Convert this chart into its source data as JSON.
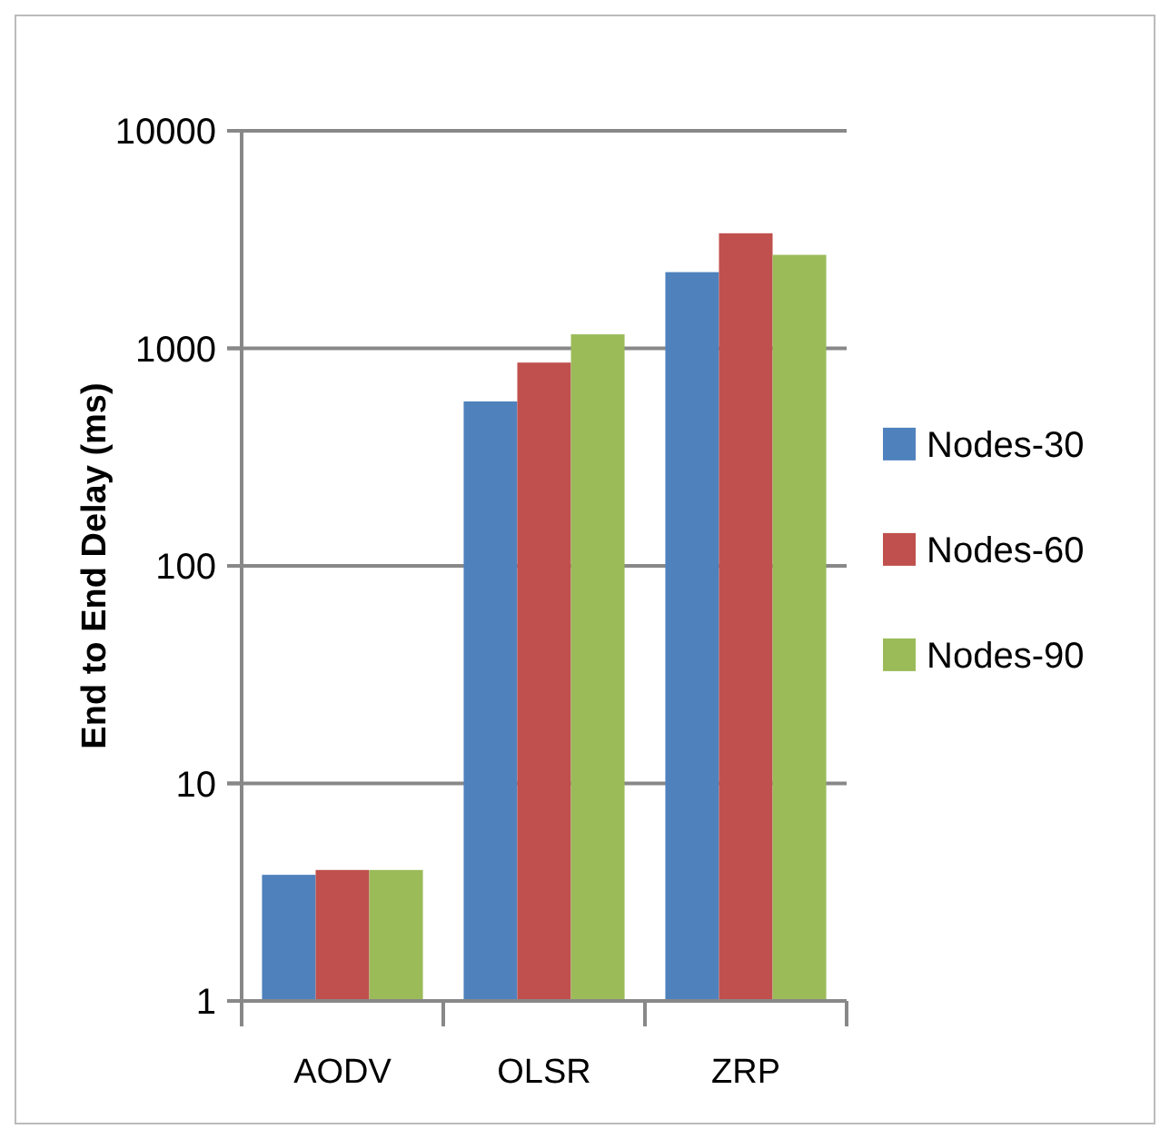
{
  "chart_data": {
    "type": "bar",
    "ylabel": "End to End Delay (ms)",
    "categories": [
      "AODV",
      "OLSR",
      "ZRP"
    ],
    "series": [
      {
        "name": "Nodes-30",
        "color": "#4f81bd",
        "values": [
          3.8,
          570,
          2240
        ]
      },
      {
        "name": "Nodes-60",
        "color": "#c0504d",
        "values": [
          4.0,
          860,
          3380
        ]
      },
      {
        "name": "Nodes-90",
        "color": "#9bbb59",
        "values": [
          4.0,
          1160,
          2690
        ]
      }
    ],
    "log": true,
    "ylim": [
      1,
      10000
    ],
    "yticks": [
      1,
      10,
      100,
      1000,
      10000
    ],
    "grid": "y",
    "legend": "right"
  }
}
